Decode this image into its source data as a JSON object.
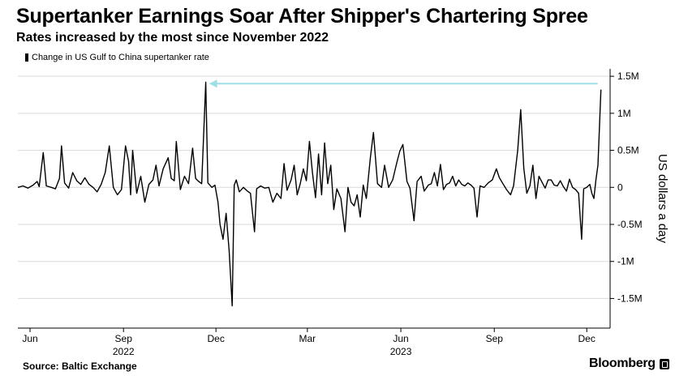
{
  "title": "Supertanker Earnings Soar After Shipper's Chartering Spree",
  "subtitle": "Rates increased by the most since November 2022",
  "source": "Source: Baltic Exchange",
  "brand": "Bloomberg",
  "brand_icon": "bloomberg-terminal-icon",
  "colors": {
    "line": "#000000",
    "arrow": "#9edfe6",
    "grid": "#d9d9d9",
    "background": "#ffffff"
  },
  "chart_data": {
    "type": "line",
    "title": "Supertanker Earnings Soar After Shipper's Chartering Spree",
    "subtitle": "Rates increased by the most since November 2022",
    "ylabel": "US dollars a day",
    "xlabel": "",
    "ylim": [
      -1900000,
      1600000
    ],
    "y_ticks": [
      {
        "value": 1500000,
        "label": "1.5M"
      },
      {
        "value": 1000000,
        "label": "1M"
      },
      {
        "value": 500000,
        "label": "0.5M"
      },
      {
        "value": 0,
        "label": "0"
      },
      {
        "value": -500000,
        "label": "-0.5M"
      },
      {
        "value": -1000000,
        "label": "-1M"
      },
      {
        "value": -1500000,
        "label": "-1.5M"
      }
    ],
    "x_ticks": [
      {
        "date": "2022-06-01",
        "label": "Jun"
      },
      {
        "date": "2022-09-01",
        "label": "Sep"
      },
      {
        "date": "2022-12-01",
        "label": "Dec"
      },
      {
        "date": "2023-03-01",
        "label": "Mar"
      },
      {
        "date": "2023-06-01",
        "label": "Jun"
      },
      {
        "date": "2023-09-01",
        "label": "Sep"
      },
      {
        "date": "2023-12-01",
        "label": "Dec"
      }
    ],
    "year_labels": [
      {
        "date": "2022-09-01",
        "label": "2022"
      },
      {
        "date": "2023-06-01",
        "label": "2023"
      }
    ],
    "legend_position": "top-left",
    "grid": true,
    "series": [
      {
        "name": "Change in US Gulf to China supertanker rate",
        "color": "#000000",
        "points": [
          [
            "2022-05-20",
            0
          ],
          [
            "2022-05-25",
            20000
          ],
          [
            "2022-05-30",
            -10000
          ],
          [
            "2022-06-04",
            30000
          ],
          [
            "2022-06-08",
            80000
          ],
          [
            "2022-06-10",
            10000
          ],
          [
            "2022-06-14",
            470000
          ],
          [
            "2022-06-17",
            20000
          ],
          [
            "2022-06-22",
            0
          ],
          [
            "2022-06-26",
            -20000
          ],
          [
            "2022-06-30",
            120000
          ],
          [
            "2022-07-02",
            560000
          ],
          [
            "2022-07-05",
            60000
          ],
          [
            "2022-07-09",
            -10000
          ],
          [
            "2022-07-13",
            200000
          ],
          [
            "2022-07-17",
            90000
          ],
          [
            "2022-07-21",
            40000
          ],
          [
            "2022-07-25",
            130000
          ],
          [
            "2022-07-29",
            40000
          ],
          [
            "2022-08-02",
            0
          ],
          [
            "2022-08-06",
            -60000
          ],
          [
            "2022-08-10",
            40000
          ],
          [
            "2022-08-14",
            200000
          ],
          [
            "2022-08-18",
            560000
          ],
          [
            "2022-08-22",
            0
          ],
          [
            "2022-08-26",
            -100000
          ],
          [
            "2022-08-30",
            -30000
          ],
          [
            "2022-09-03",
            560000
          ],
          [
            "2022-09-06",
            350000
          ],
          [
            "2022-09-08",
            -100000
          ],
          [
            "2022-09-10",
            500000
          ],
          [
            "2022-09-14",
            -80000
          ],
          [
            "2022-09-18",
            150000
          ],
          [
            "2022-09-22",
            -200000
          ],
          [
            "2022-09-26",
            40000
          ],
          [
            "2022-09-30",
            100000
          ],
          [
            "2022-10-03",
            300000
          ],
          [
            "2022-10-06",
            20000
          ],
          [
            "2022-10-10",
            250000
          ],
          [
            "2022-10-15",
            400000
          ],
          [
            "2022-10-18",
            120000
          ],
          [
            "2022-10-21",
            90000
          ],
          [
            "2022-10-23",
            620000
          ],
          [
            "2022-10-27",
            -30000
          ],
          [
            "2022-10-31",
            150000
          ],
          [
            "2022-11-04",
            50000
          ],
          [
            "2022-11-08",
            530000
          ],
          [
            "2022-11-11",
            120000
          ],
          [
            "2022-11-14",
            80000
          ],
          [
            "2022-11-17",
            50000
          ],
          [
            "2022-11-21",
            1420000
          ],
          [
            "2022-11-23",
            60000
          ],
          [
            "2022-11-27",
            0
          ],
          [
            "2022-11-30",
            30000
          ],
          [
            "2022-12-03",
            -200000
          ],
          [
            "2022-12-05",
            -500000
          ],
          [
            "2022-12-08",
            -700000
          ],
          [
            "2022-12-11",
            -350000
          ],
          [
            "2022-12-14",
            -850000
          ],
          [
            "2022-12-17",
            -1600000
          ],
          [
            "2022-12-19",
            30000
          ],
          [
            "2022-12-21",
            100000
          ],
          [
            "2022-12-24",
            -60000
          ],
          [
            "2022-12-28",
            0
          ],
          [
            "2023-01-01",
            -50000
          ],
          [
            "2023-01-04",
            -80000
          ],
          [
            "2023-01-08",
            -600000
          ],
          [
            "2023-01-10",
            -20000
          ],
          [
            "2023-01-14",
            20000
          ],
          [
            "2023-01-18",
            -10000
          ],
          [
            "2023-01-22",
            0
          ],
          [
            "2023-01-26",
            -200000
          ],
          [
            "2023-01-30",
            -80000
          ],
          [
            "2023-02-03",
            -150000
          ],
          [
            "2023-02-06",
            320000
          ],
          [
            "2023-02-09",
            -40000
          ],
          [
            "2023-02-13",
            100000
          ],
          [
            "2023-02-16",
            300000
          ],
          [
            "2023-02-19",
            -100000
          ],
          [
            "2023-02-22",
            50000
          ],
          [
            "2023-02-25",
            250000
          ],
          [
            "2023-02-28",
            90000
          ],
          [
            "2023-03-03",
            620000
          ],
          [
            "2023-03-06",
            200000
          ],
          [
            "2023-03-09",
            -140000
          ],
          [
            "2023-03-12",
            450000
          ],
          [
            "2023-03-15",
            -100000
          ],
          [
            "2023-03-18",
            600000
          ],
          [
            "2023-03-21",
            50000
          ],
          [
            "2023-03-24",
            300000
          ],
          [
            "2023-03-27",
            -300000
          ],
          [
            "2023-03-30",
            -20000
          ],
          [
            "2023-04-03",
            -150000
          ],
          [
            "2023-04-07",
            -600000
          ],
          [
            "2023-04-10",
            0
          ],
          [
            "2023-04-13",
            -200000
          ],
          [
            "2023-04-16",
            -250000
          ],
          [
            "2023-04-19",
            -100000
          ],
          [
            "2023-04-22",
            -400000
          ],
          [
            "2023-04-25",
            30000
          ],
          [
            "2023-04-28",
            -150000
          ],
          [
            "2023-05-02",
            400000
          ],
          [
            "2023-05-05",
            740000
          ],
          [
            "2023-05-09",
            50000
          ],
          [
            "2023-05-13",
            0
          ],
          [
            "2023-05-16",
            300000
          ],
          [
            "2023-05-20",
            0
          ],
          [
            "2023-05-24",
            100000
          ],
          [
            "2023-05-28",
            330000
          ],
          [
            "2023-05-31",
            490000
          ],
          [
            "2023-06-03",
            580000
          ],
          [
            "2023-06-07",
            80000
          ],
          [
            "2023-06-10",
            -10000
          ],
          [
            "2023-06-14",
            -450000
          ],
          [
            "2023-06-17",
            80000
          ],
          [
            "2023-06-21",
            150000
          ],
          [
            "2023-06-24",
            -50000
          ],
          [
            "2023-06-28",
            30000
          ],
          [
            "2023-07-01",
            50000
          ],
          [
            "2023-07-04",
            200000
          ],
          [
            "2023-07-07",
            20000
          ],
          [
            "2023-07-10",
            310000
          ],
          [
            "2023-07-13",
            -30000
          ],
          [
            "2023-07-16",
            40000
          ],
          [
            "2023-07-19",
            60000
          ],
          [
            "2023-07-22",
            150000
          ],
          [
            "2023-07-25",
            20000
          ],
          [
            "2023-07-28",
            100000
          ],
          [
            "2023-07-31",
            40000
          ],
          [
            "2023-08-03",
            20000
          ],
          [
            "2023-08-06",
            60000
          ],
          [
            "2023-08-09",
            30000
          ],
          [
            "2023-08-12",
            -10000
          ],
          [
            "2023-08-15",
            -400000
          ],
          [
            "2023-08-18",
            20000
          ],
          [
            "2023-08-22",
            0
          ],
          [
            "2023-08-26",
            60000
          ],
          [
            "2023-08-30",
            100000
          ],
          [
            "2023-09-03",
            250000
          ],
          [
            "2023-09-06",
            130000
          ],
          [
            "2023-09-09",
            60000
          ],
          [
            "2023-09-13",
            -30000
          ],
          [
            "2023-09-17",
            -100000
          ],
          [
            "2023-09-20",
            20000
          ],
          [
            "2023-09-24",
            500000
          ],
          [
            "2023-09-27",
            1050000
          ],
          [
            "2023-09-30",
            260000
          ],
          [
            "2023-10-03",
            -80000
          ],
          [
            "2023-10-06",
            20000
          ],
          [
            "2023-10-09",
            300000
          ],
          [
            "2023-10-12",
            -150000
          ],
          [
            "2023-10-15",
            150000
          ],
          [
            "2023-10-18",
            70000
          ],
          [
            "2023-10-21",
            -10000
          ],
          [
            "2023-10-24",
            100000
          ],
          [
            "2023-10-27",
            100000
          ],
          [
            "2023-10-30",
            30000
          ],
          [
            "2023-11-02",
            20000
          ],
          [
            "2023-11-05",
            90000
          ],
          [
            "2023-11-08",
            10000
          ],
          [
            "2023-11-11",
            -50000
          ],
          [
            "2023-11-14",
            110000
          ],
          [
            "2023-11-17",
            0
          ],
          [
            "2023-11-20",
            -30000
          ],
          [
            "2023-11-23",
            -80000
          ],
          [
            "2023-11-26",
            -700000
          ],
          [
            "2023-11-28",
            -20000
          ],
          [
            "2023-12-01",
            0
          ],
          [
            "2023-12-04",
            40000
          ],
          [
            "2023-12-06",
            -80000
          ],
          [
            "2023-12-08",
            -150000
          ],
          [
            "2023-12-10",
            100000
          ],
          [
            "2023-12-12",
            300000
          ],
          [
            "2023-12-15",
            1320000
          ]
        ]
      }
    ],
    "annotation": {
      "type": "arrow",
      "from_date": "2023-12-15",
      "to_date": "2022-11-21",
      "value": 1400000
    }
  }
}
